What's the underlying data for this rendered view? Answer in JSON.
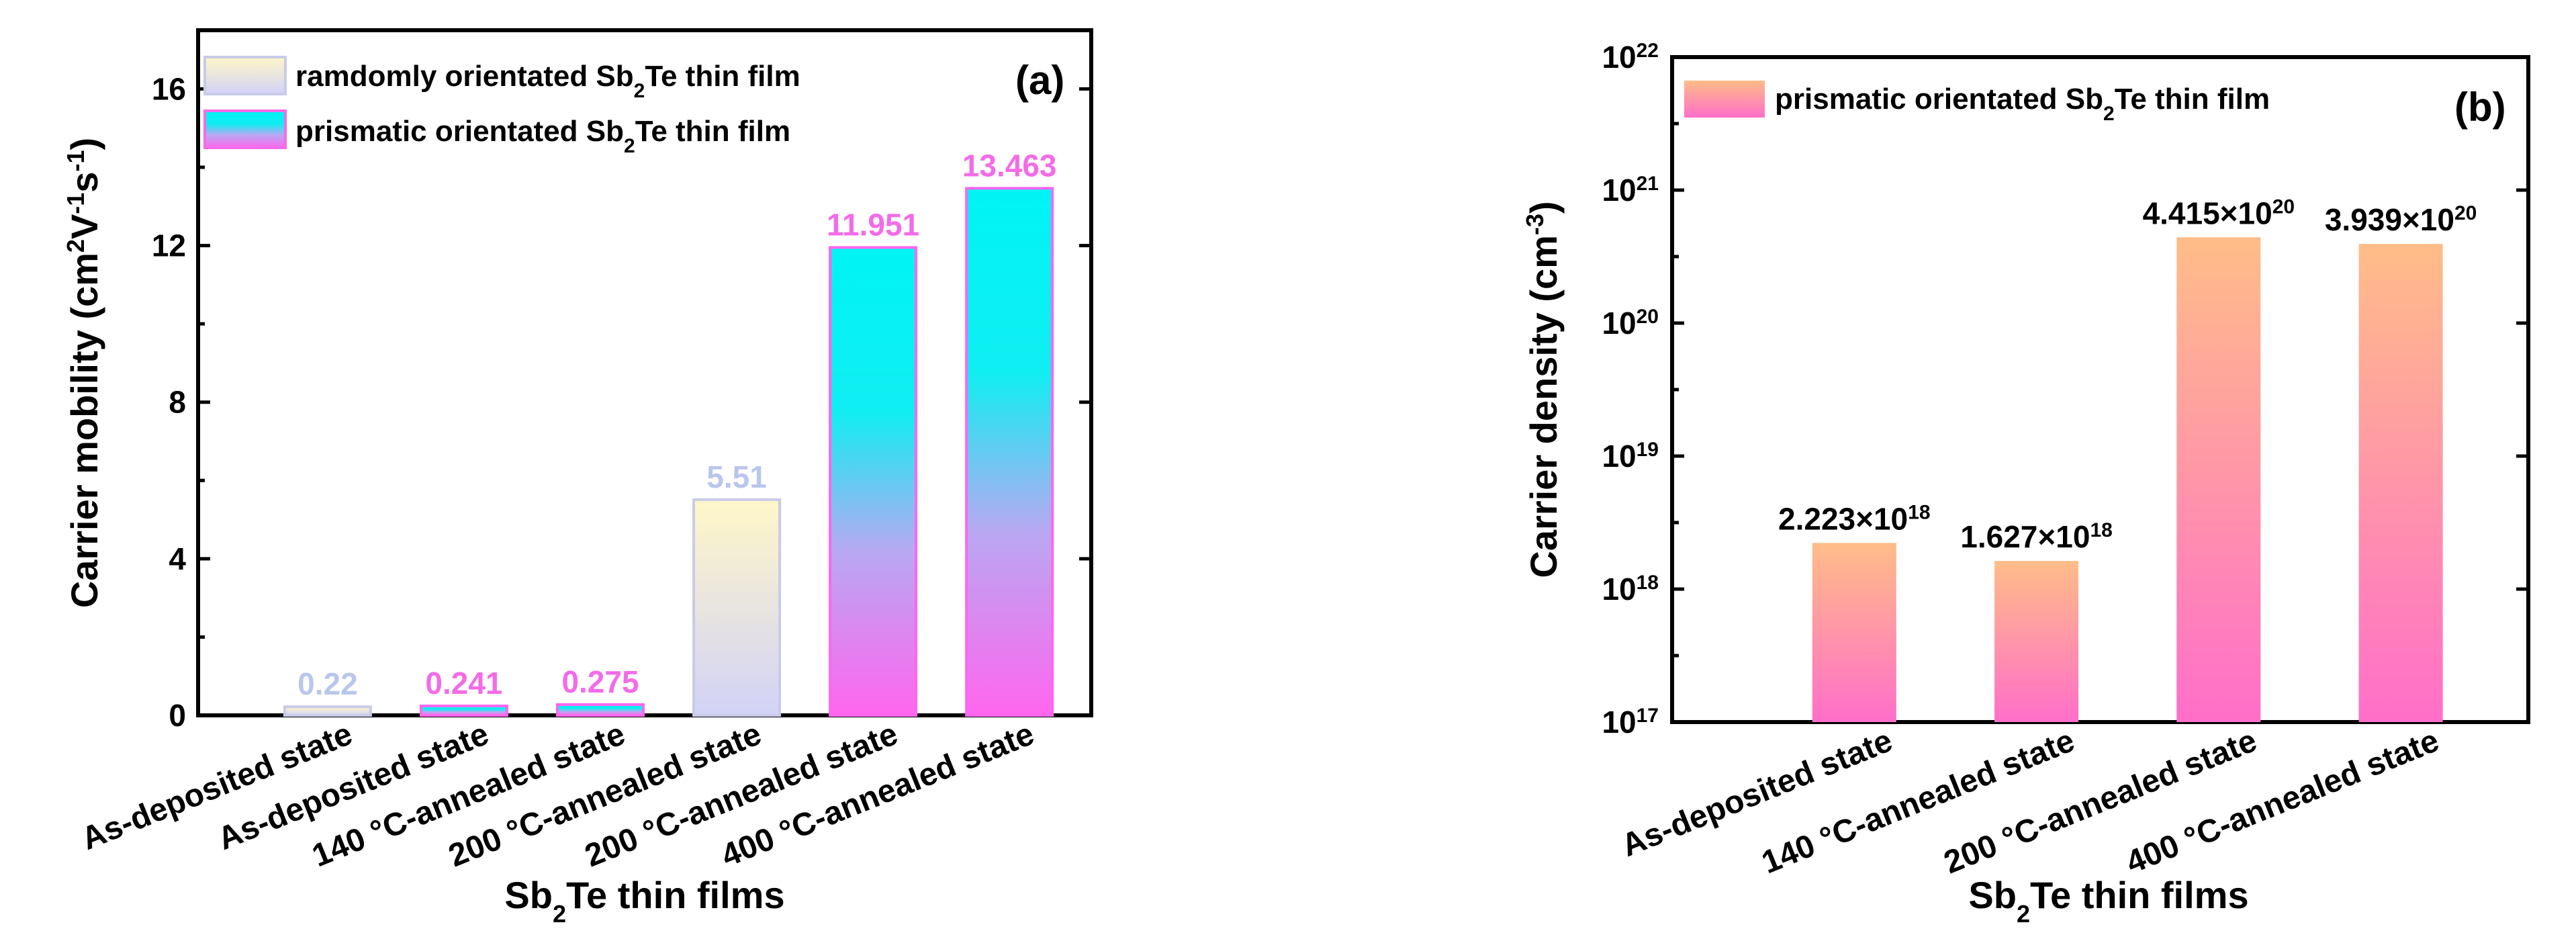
{
  "chart_data": [
    {
      "type": "bar",
      "panel_label": "(a)",
      "xlabel": {
        "prefix": "Sb",
        "sub": "2",
        "suffix": "Te thin films"
      },
      "ylabel": "Carrier mobility (cm2V-1s-1)",
      "ylabel_parts": {
        "pre": "Carrier mobility (cm",
        "s1": "2",
        "mid1": "V",
        "s2": "-1",
        "mid2": "s",
        "s3": "-1",
        "post": ")"
      },
      "ylim": [
        0,
        17.5
      ],
      "yticks": [
        0,
        4,
        8,
        12,
        16
      ],
      "ytick_labels": [
        "0",
        "4",
        "8",
        "12",
        "16"
      ],
      "legend": [
        {
          "pre": "ramdomly orientated Sb",
          "sub": "2",
          "post": "Te thin film",
          "series": "random"
        },
        {
          "pre": "prismatic orientated Sb",
          "sub": "2",
          "post": "Te thin film",
          "series": "prismatic"
        }
      ],
      "categories": [
        "As-deposited state",
        "As-deposited state",
        "140 °C-annealed state",
        "200 °C-annealed state",
        "200 °C-annealed state",
        "400 °C-annealed state"
      ],
      "bar_series": [
        "random",
        "prismatic",
        "prismatic",
        "random",
        "prismatic",
        "prismatic"
      ],
      "values": [
        0.22,
        0.241,
        0.275,
        5.51,
        11.951,
        13.463
      ],
      "value_labels": [
        "0.22",
        "0.241",
        "0.275",
        "5.51",
        "11.951",
        "13.463"
      ],
      "colors": {
        "random_label": "#b9c6ec",
        "prismatic_label": "#f36be8",
        "prismatic_top": "#00f4f4",
        "prismatic_bottom": "#ff66ee",
        "random_top": "#fff7c8",
        "random_bottom": "#d2d2f7"
      }
    },
    {
      "type": "bar",
      "scale": "log",
      "panel_label": "(b)",
      "xlabel": {
        "prefix": "Sb",
        "sub": "2",
        "suffix": "Te thin films"
      },
      "ylabel": "Carrier density (cm-3)",
      "ylabel_parts": {
        "pre": "Carrier density (cm",
        "sup": "-3",
        "post": ")"
      },
      "ylim": [
        1e+17,
        1e+22
      ],
      "ytick_exponents": [
        "17",
        "18",
        "19",
        "20",
        "21",
        "22"
      ],
      "ytick_base": "10",
      "legend": [
        {
          "pre": "prismatic orientated Sb",
          "sub": "2",
          "post": "Te thin film"
        }
      ],
      "categories": [
        "As-deposited state",
        "140 °C-annealed state",
        "200 °C-annealed state",
        "400 °C-annealed state"
      ],
      "values": [
        2.223e+18,
        1.627e+18,
        4.415e+20,
        3.939e+20
      ],
      "value_labels": [
        {
          "mant": "2.223×10",
          "exp": "18"
        },
        {
          "mant": "1.627×10",
          "exp": "18"
        },
        {
          "mant": "4.415×10",
          "exp": "20"
        },
        {
          "mant": "3.939×10",
          "exp": "20"
        }
      ],
      "colors": {
        "top": "#ffbd88",
        "bottom": "#ff6ec9"
      }
    }
  ]
}
